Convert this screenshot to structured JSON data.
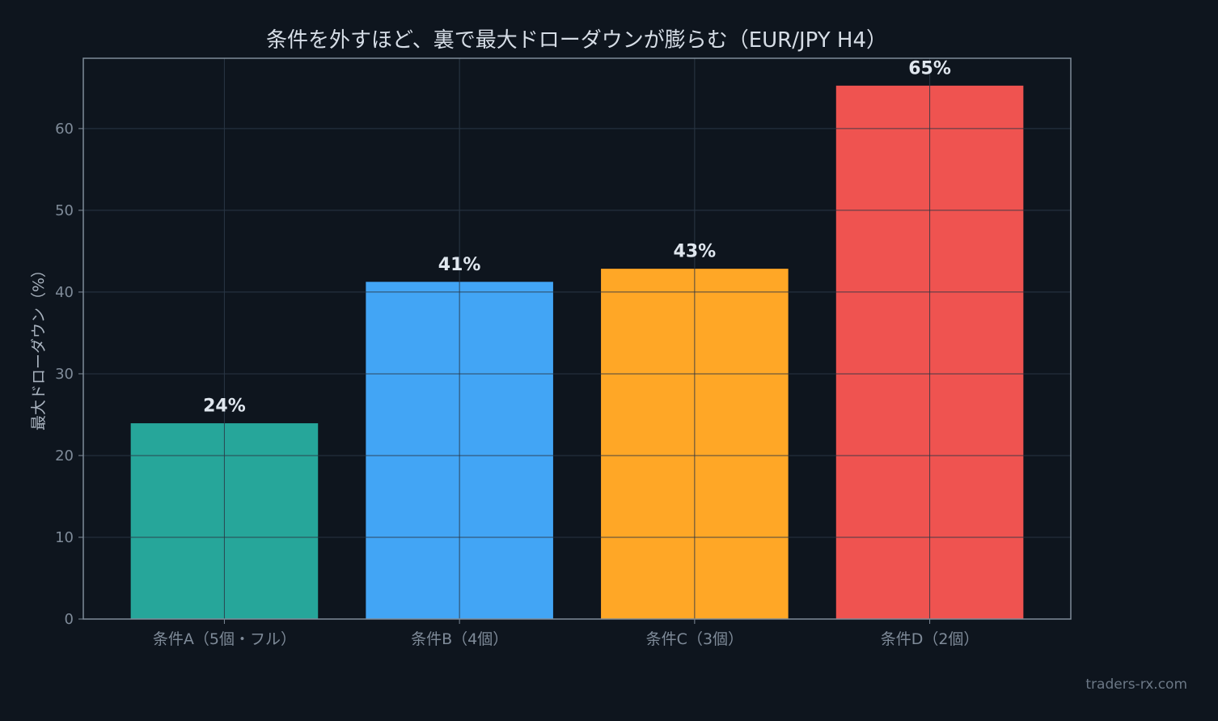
{
  "chart_data": {
    "type": "bar",
    "title": "条件を外すほど、裏で最大ドローダウンが膨らむ（EUR/JPY H4）",
    "xlabel": "",
    "ylabel": "最大ドローダウン（%）",
    "categories": [
      "条件A（5個・フル）",
      "条件B（4個）",
      "条件C（3個）",
      "条件D（2個）"
    ],
    "values": [
      24,
      41.3,
      42.9,
      65.3
    ],
    "value_labels": [
      "24%",
      "41%",
      "43%",
      "65%"
    ],
    "colors": [
      "#26a69a",
      "#42a5f5",
      "#ffa726",
      "#ef5350"
    ],
    "ylim": [
      0,
      68.6
    ],
    "yticks": [
      0,
      10,
      20,
      30,
      40,
      50,
      60
    ],
    "grid": true
  },
  "watermark": "traders-rx.com"
}
